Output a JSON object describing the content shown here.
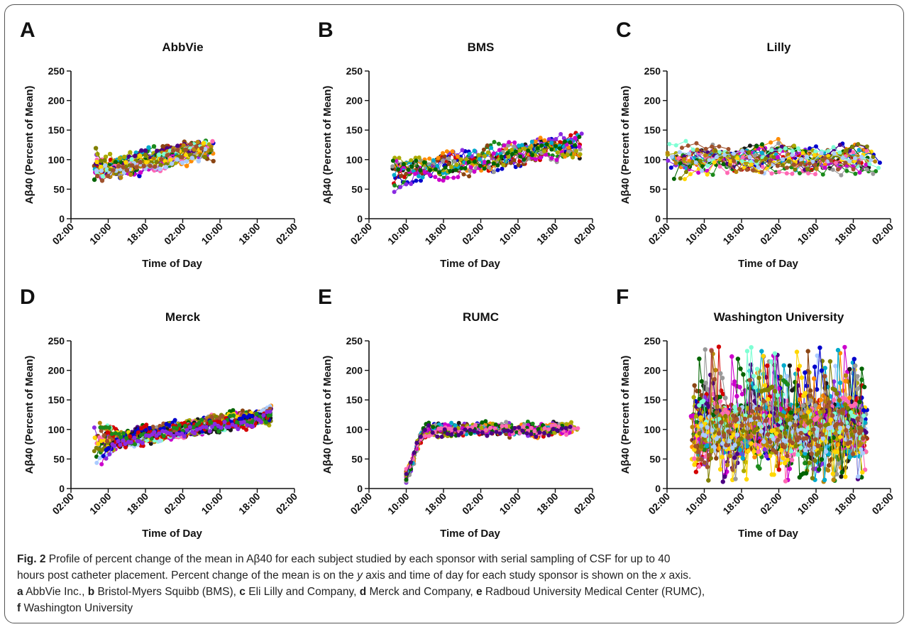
{
  "chart_data": [
    {
      "panel": "A",
      "type": "line",
      "title": "AbbVie",
      "xlabel": "Time of Day",
      "ylabel": "Aβ40 (Percent of Mean)",
      "x_ticks": [
        "02:00",
        "10:00",
        "18:00",
        "02:00",
        "10:00",
        "18:00",
        "02:00"
      ],
      "x_range_hours": [
        2,
        50
      ],
      "ylim": [
        0,
        250
      ],
      "y_ticks": [
        0,
        50,
        100,
        150,
        200,
        250
      ],
      "data_x_range_hours": [
        7,
        33
      ],
      "series_count": 20,
      "y_typical_range": [
        50,
        175
      ]
    },
    {
      "panel": "B",
      "type": "line",
      "title": "BMS",
      "xlabel": "Time of Day",
      "ylabel": "Aβ40 (Percent of Mean)",
      "x_ticks": [
        "02:00",
        "10:00",
        "18:00",
        "02:00",
        "10:00",
        "18:00",
        "02:00"
      ],
      "x_range_hours": [
        2,
        50
      ],
      "ylim": [
        0,
        250
      ],
      "y_ticks": [
        0,
        50,
        100,
        150,
        200,
        250
      ],
      "data_x_range_hours": [
        7,
        48
      ],
      "series_count": 12,
      "y_typical_range": [
        22,
        190
      ]
    },
    {
      "panel": "C",
      "type": "line",
      "title": "Lilly",
      "xlabel": "Time of Day",
      "ylabel": "Aβ40 (Percent of Mean)",
      "x_ticks": [
        "02:00",
        "10:00",
        "18:00",
        "02:00",
        "10:00",
        "18:00",
        "02:00"
      ],
      "x_range_hours": [
        2,
        50
      ],
      "ylim": [
        0,
        250
      ],
      "y_ticks": [
        0,
        50,
        100,
        150,
        200,
        250
      ],
      "data_x_range_hours": [
        2,
        48
      ],
      "series_count": 20,
      "y_typical_range": [
        45,
        222
      ]
    },
    {
      "panel": "D",
      "type": "line",
      "title": "Merck",
      "xlabel": "Time of Day",
      "ylabel": "Aβ40 (Percent of Mean)",
      "x_ticks": [
        "02:00",
        "10:00",
        "18:00",
        "02:00",
        "10:00",
        "18:00",
        "02:00"
      ],
      "x_range_hours": [
        2,
        50
      ],
      "ylim": [
        0,
        250
      ],
      "y_ticks": [
        0,
        50,
        100,
        150,
        200,
        250
      ],
      "data_x_range_hours": [
        7,
        45
      ],
      "series_count": 25,
      "y_typical_range": [
        22,
        160
      ]
    },
    {
      "panel": "E",
      "type": "line",
      "title": "RUMC",
      "xlabel": "Time of Day",
      "ylabel": "Aβ40 (Percent of Mean)",
      "x_ticks": [
        "02:00",
        "10:00",
        "18:00",
        "02:00",
        "10:00",
        "18:00",
        "02:00"
      ],
      "x_range_hours": [
        2,
        50
      ],
      "ylim": [
        0,
        250
      ],
      "y_ticks": [
        0,
        50,
        100,
        150,
        200,
        250
      ],
      "data_x_range_hours": [
        10,
        47
      ],
      "series_count": 14,
      "y_typical_range": [
        8,
        140
      ]
    },
    {
      "panel": "F",
      "type": "line",
      "title": "Washington University",
      "xlabel": "Time of Day",
      "ylabel": "Aβ40 (Percent of Mean)",
      "x_ticks": [
        "02:00",
        "10:00",
        "18:00",
        "02:00",
        "10:00",
        "18:00",
        "02:00"
      ],
      "x_range_hours": [
        2,
        50
      ],
      "ylim": [
        0,
        250
      ],
      "y_ticks": [
        0,
        50,
        100,
        150,
        200,
        250
      ],
      "data_x_range_hours": [
        7,
        45
      ],
      "series_count": 40,
      "y_typical_range": [
        5,
        250
      ]
    }
  ],
  "palette": [
    "#1a1a1a",
    "#0000cc",
    "#d40000",
    "#1b8a1b",
    "#8a2be2",
    "#8b4513",
    "#ff8c00",
    "#999999",
    "#00aacc",
    "#cc00cc",
    "#aaaa00",
    "#006400",
    "#ff69b4",
    "#4b0082",
    "#b8860b",
    "#7fffd4",
    "#ffd700",
    "#808000",
    "#aaccff",
    "#a0522d"
  ],
  "caption": {
    "fig": "Fig. 2",
    "line1": " Profile of percent change of the mean in Aβ40 for each subject studied by each sponsor with serial sampling of CSF for up to 40",
    "line2a": "hours post catheter placement. Percent change of the mean is on the ",
    "y": "y",
    "line2b": " axis and time of day for each study sponsor is shown on the ",
    "x": "x",
    "line2c": " axis.",
    "a": "a",
    "a_text": " AbbVie Inc., ",
    "b": "b",
    "b_text": " Bristol-Myers Squibb (BMS), ",
    "c": "c",
    "c_text": " Eli Lilly and Company, ",
    "d": "d",
    "d_text": " Merck and Company, ",
    "e": "e",
    "e_text": " Radboud University Medical Center (RUMC),",
    "f": "f",
    "f_text": " Washington University"
  }
}
